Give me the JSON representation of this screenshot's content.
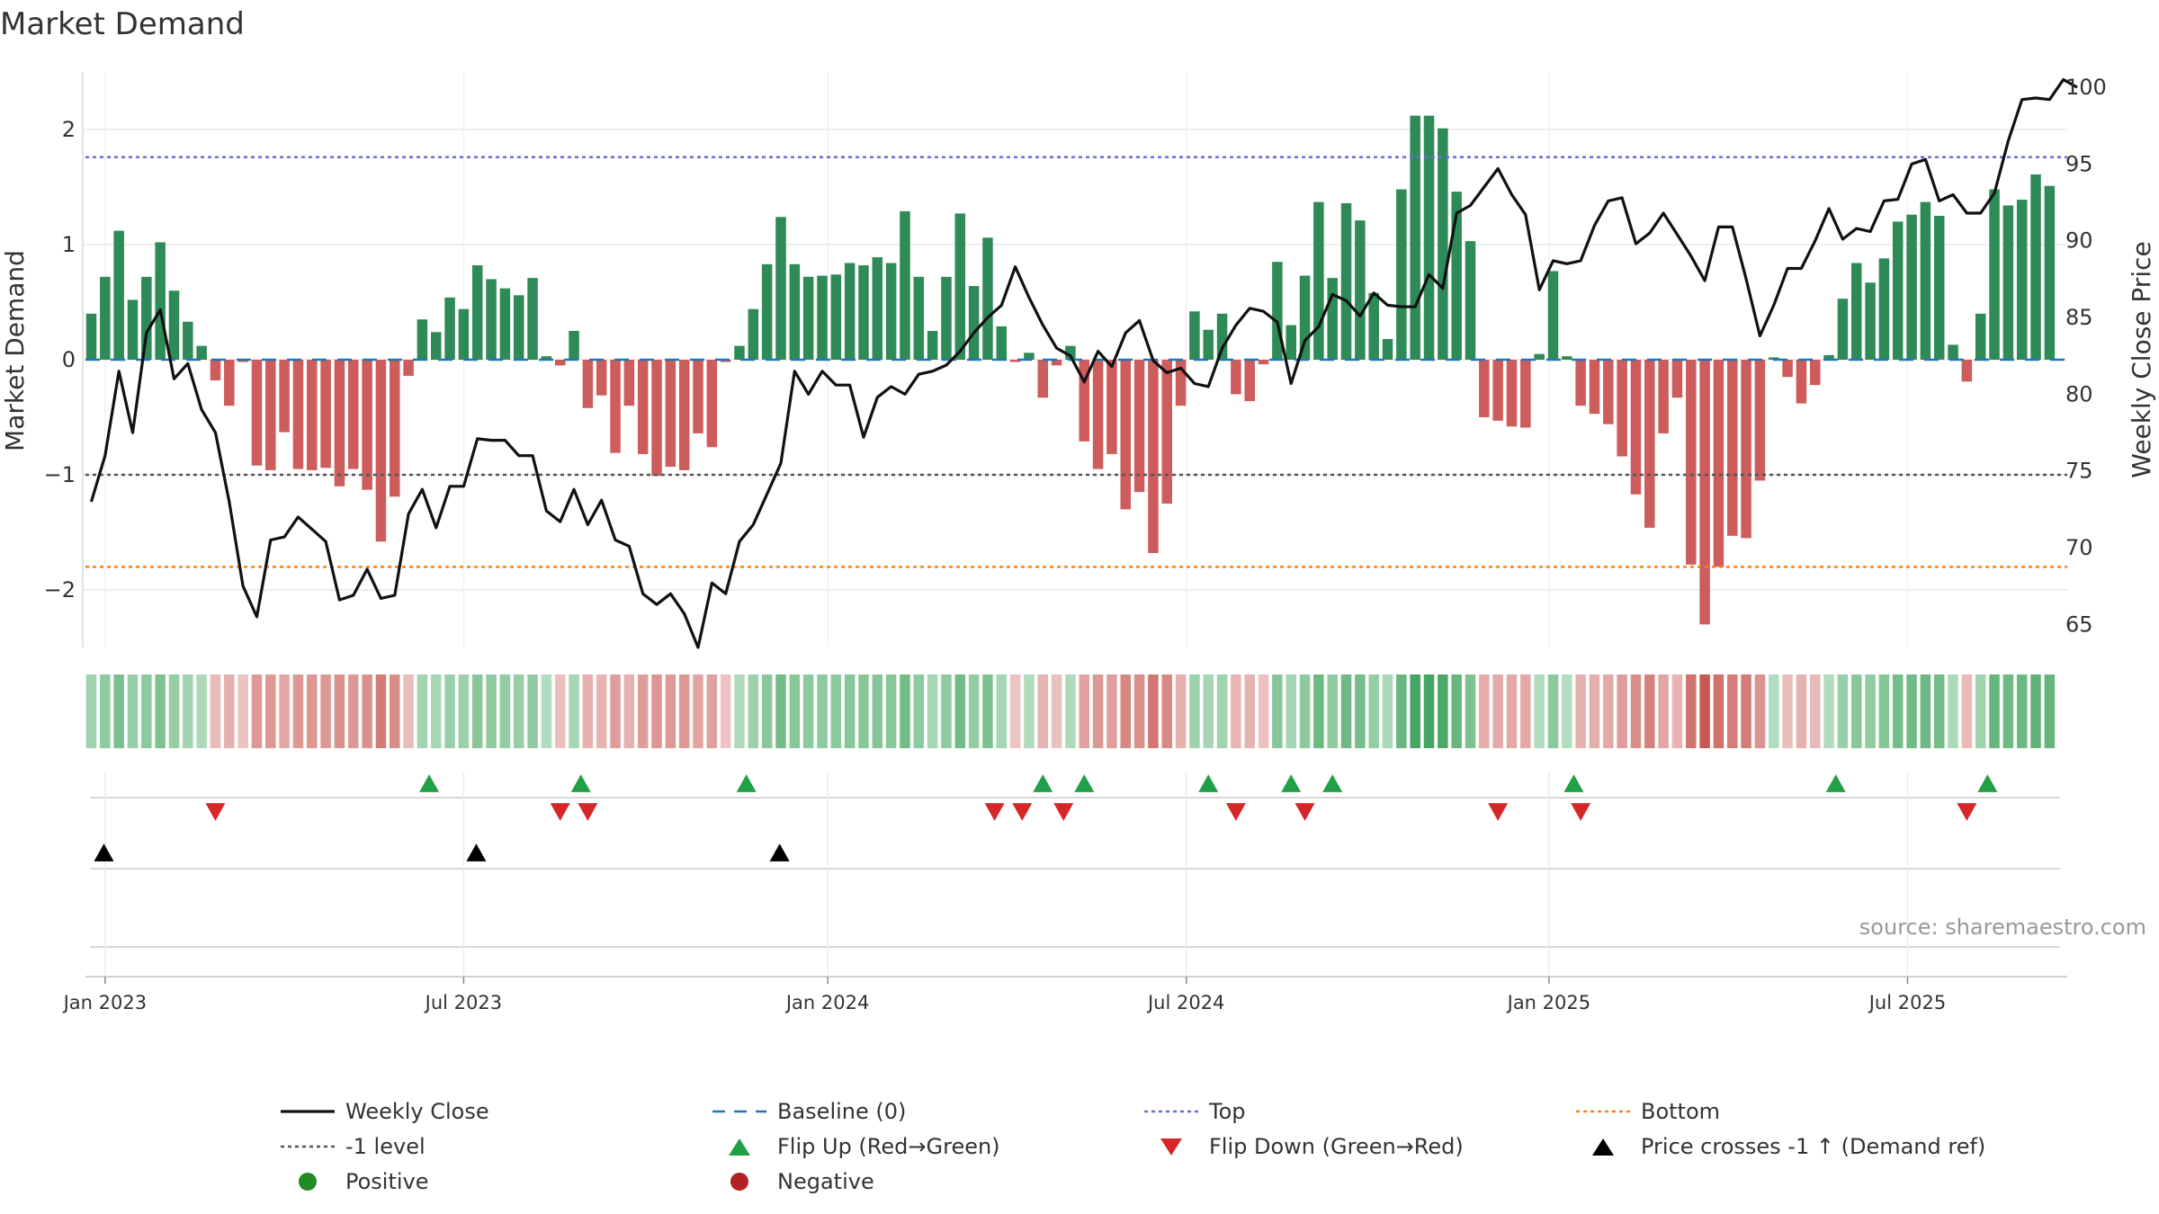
{
  "chart_data": {
    "type": "bar",
    "title": "Market Demand",
    "ylabel": "Market Demand",
    "y2label": "Weekly Close Price",
    "ylim": [
      -2.5,
      2.5
    ],
    "y2lim": [
      63.5,
      101
    ],
    "yticks": [
      -2,
      -1,
      0,
      1,
      2
    ],
    "yticklabels": [
      "−2",
      "−1",
      "0",
      "1",
      "2"
    ],
    "y2ticks": [
      65,
      70,
      75,
      80,
      85,
      90,
      95,
      100
    ],
    "y2ticklabels": [
      "65",
      "70",
      "75",
      "80",
      "85",
      "90",
      "95",
      "100"
    ],
    "weeks": 145,
    "xticks": [
      {
        "week": 1,
        "label": "Jan 2023"
      },
      {
        "week": 27,
        "label": "Jul 2023"
      },
      {
        "week": 53.4,
        "label": "Jan 2024"
      },
      {
        "week": 79.4,
        "label": "Jul 2024"
      },
      {
        "week": 105.7,
        "label": "Jan 2025"
      },
      {
        "week": 131.7,
        "label": "Jul 2025"
      }
    ],
    "demand": [
      0.4,
      0.72,
      1.12,
      0.52,
      0.72,
      1.02,
      0.6,
      0.33,
      0.12,
      -0.18,
      -0.4,
      -0.02,
      -0.92,
      -0.96,
      -0.63,
      -0.95,
      -0.96,
      -0.94,
      -1.1,
      -0.95,
      -1.13,
      -1.58,
      -1.19,
      -0.14,
      0.35,
      0.24,
      0.54,
      0.44,
      0.82,
      0.7,
      0.62,
      0.56,
      0.71,
      0.03,
      -0.05,
      0.25,
      -0.42,
      -0.31,
      -0.81,
      -0.4,
      -0.82,
      -1.01,
      -0.93,
      -0.96,
      -0.64,
      -0.76,
      -0.02,
      0.12,
      0.44,
      0.83,
      1.24,
      0.83,
      0.72,
      0.73,
      0.74,
      0.84,
      0.82,
      0.89,
      0.84,
      1.29,
      0.72,
      0.25,
      0.72,
      1.27,
      0.64,
      1.06,
      0.29,
      -0.02,
      0.06,
      -0.33,
      -0.05,
      0.12,
      -0.71,
      -0.95,
      -0.82,
      -1.3,
      -1.15,
      -1.68,
      -1.25,
      -0.4,
      0.42,
      0.26,
      0.4,
      -0.3,
      -0.36,
      -0.04,
      0.85,
      0.3,
      0.73,
      1.37,
      0.71,
      1.36,
      1.21,
      0.58,
      0.18,
      1.48,
      2.12,
      2.12,
      2.01,
      1.46,
      1.03,
      -0.5,
      -0.53,
      -0.58,
      -0.59,
      0.05,
      0.77,
      0.03,
      -0.4,
      -0.47,
      -0.56,
      -0.84,
      -1.17,
      -1.46,
      -0.64,
      -0.33,
      -1.78,
      -2.3,
      -1.8,
      -1.53,
      -1.55,
      -1.05,
      0.02,
      -0.15,
      -0.38,
      -0.22,
      0.04,
      0.53,
      0.84,
      0.67,
      0.88,
      1.2,
      1.26,
      1.37,
      1.25,
      0.13,
      -0.19,
      0.4,
      1.48,
      1.34,
      1.39,
      1.61,
      1.51
    ],
    "close": [
      73.0,
      76.0,
      81.5,
      77.5,
      84.0,
      85.5,
      81.0,
      82.0,
      79.0,
      77.5,
      73.0,
      67.5,
      65.5,
      70.5,
      70.7,
      72.0,
      71.2,
      70.4,
      66.6,
      66.9,
      68.6,
      66.7,
      66.9,
      72.2,
      73.8,
      71.3,
      74.0,
      74.0,
      77.1,
      77.0,
      77.0,
      76.0,
      76.0,
      72.4,
      71.7,
      73.8,
      71.5,
      73.1,
      70.5,
      70.1,
      67.0,
      66.3,
      67.0,
      65.7,
      63.5,
      67.7,
      67.0,
      70.4,
      71.5,
      73.5,
      75.5,
      81.5,
      80.0,
      81.5,
      80.6,
      80.6,
      77.2,
      79.8,
      80.5,
      80.0,
      81.3,
      81.5,
      81.9,
      82.8,
      84.0,
      85.0,
      85.8,
      88.3,
      86.3,
      84.5,
      83.0,
      82.5,
      80.8,
      82.8,
      81.8,
      84.0,
      84.8,
      82.2,
      81.4,
      81.7,
      80.7,
      80.5,
      83.0,
      84.5,
      85.6,
      85.4,
      84.7,
      80.7,
      83.5,
      84.4,
      86.5,
      86.1,
      85.1,
      86.6,
      85.8,
      85.7,
      85.7,
      87.8,
      86.9,
      91.8,
      92.3,
      93.5,
      94.7,
      93.0,
      91.7,
      86.8,
      88.7,
      88.5,
      88.7,
      91.0,
      92.6,
      92.8,
      89.8,
      90.5,
      91.8,
      90.4,
      89.0,
      87.4,
      90.9,
      90.9,
      87.5,
      83.8,
      85.8,
      88.2,
      88.2,
      90.0,
      92.1,
      90.1,
      90.8,
      90.6,
      92.6,
      92.7,
      95.0,
      95.3,
      92.6,
      93.0,
      91.8,
      91.8,
      93.1,
      96.5,
      99.2,
      99.3,
      99.2,
      100.5,
      100.0
    ],
    "reference_lines": {
      "top": 1.76,
      "minus_one": -1,
      "bottom": -1.8,
      "baseline": 0
    },
    "flip_up_weeks": [
      24.5,
      35.5,
      47.5,
      69,
      72,
      81,
      87,
      90,
      107.5,
      126.5,
      137.5
    ],
    "flip_down_weeks": [
      9,
      34,
      36,
      65.5,
      67.5,
      70.5,
      83,
      88,
      102,
      108,
      136
    ],
    "price_cross_weeks": [
      0,
      27,
      49
    ],
    "legend": [
      {
        "key": "close",
        "label": "Weekly Close",
        "symbol": "line",
        "color": "#111111"
      },
      {
        "key": "baseline",
        "label": "Baseline (0)",
        "symbol": "dash",
        "color": "#1f77b4"
      },
      {
        "key": "top",
        "label": "Top",
        "symbol": "dot",
        "color": "#6a6ad8"
      },
      {
        "key": "bottom",
        "label": "Bottom",
        "symbol": "dot",
        "color": "#ff7f0e"
      },
      {
        "key": "minus_one",
        "label": "-1 level",
        "symbol": "dot",
        "color": "#555555"
      },
      {
        "key": "flip_up",
        "label": "Flip Up (Red→Green)",
        "symbol": "tri-up",
        "color": "#22a046"
      },
      {
        "key": "flip_down",
        "label": "Flip Down (Green→Red)",
        "symbol": "tri-down",
        "color": "#d62728"
      },
      {
        "key": "price_cross",
        "label": "Price crosses -1 ↑ (Demand ref)",
        "symbol": "tri-up",
        "color": "#000000"
      },
      {
        "key": "positive",
        "label": "Positive",
        "symbol": "circle",
        "color": "#228b22"
      },
      {
        "key": "negative",
        "label": "Negative",
        "symbol": "circle",
        "color": "#b22222"
      }
    ],
    "colors": {
      "positive_bar": "#2e8a57",
      "negative_bar": "#cd5c5c",
      "close_line": "#111111",
      "grid": "#e8e8e8"
    }
  },
  "source": "source: sharemaestro.com"
}
